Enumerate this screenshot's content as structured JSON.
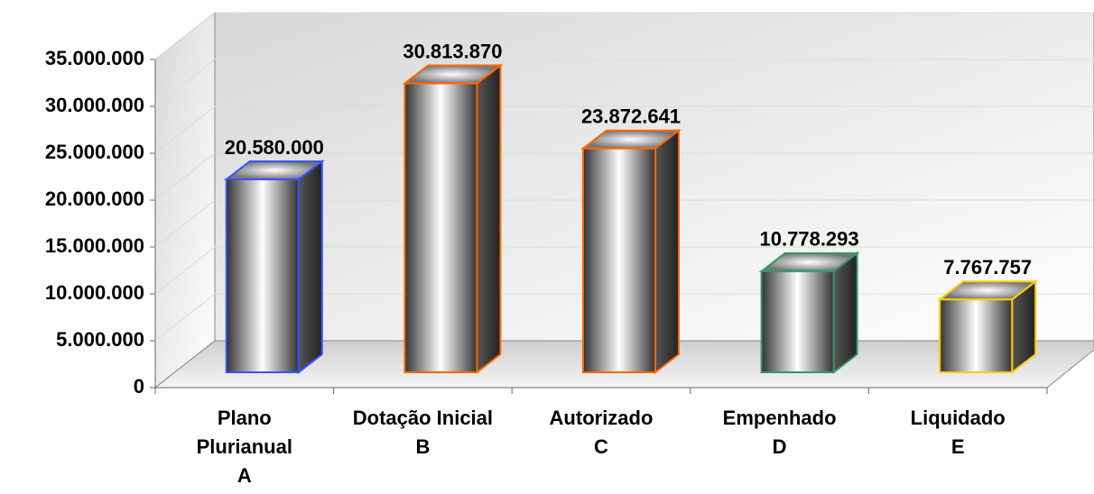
{
  "chart_data": {
    "type": "bar3d",
    "categories": [
      [
        "Plano",
        "Plurianual",
        "A"
      ],
      [
        "Dotação Inicial",
        "B"
      ],
      [
        "Autorizado",
        "C"
      ],
      [
        "Empenhado",
        "D"
      ],
      [
        "Liquidado",
        "E"
      ]
    ],
    "values": [
      20580000,
      30813870,
      23872641,
      10778293,
      7767757
    ],
    "value_labels": [
      "20.580.000",
      "30.813.870",
      "23.872.641",
      "10.778.293",
      "7.767.757"
    ],
    "colors": [
      "#3355ff",
      "#ff6600",
      "#ff6600",
      "#339966",
      "#ffcc00"
    ],
    "ylim": [
      0,
      35000000
    ],
    "yticks": [
      0,
      {
        "value": 5000000,
        "label": "5.000.000"
      },
      {
        "value": 10000000,
        "label": "10.000.000"
      },
      {
        "value": 15000000,
        "label": "15.000.000"
      },
      {
        "value": 20000000,
        "label": "20.000.000"
      },
      {
        "value": 25000000,
        "label": "25.000.000"
      },
      {
        "value": 30000000,
        "label": "30.000.000"
      },
      {
        "value": 35000000,
        "label": "35.000.000"
      }
    ],
    "grid": true
  }
}
